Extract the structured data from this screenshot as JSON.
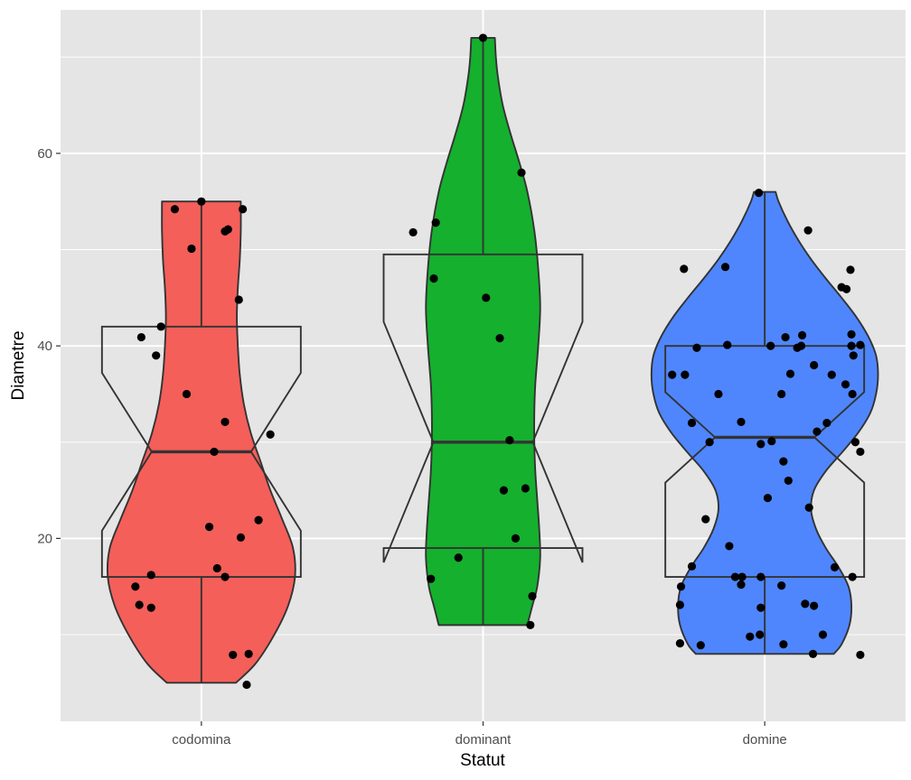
{
  "chart_data": {
    "type": "violin",
    "title": "",
    "xlabel": "Statut",
    "ylabel": "Diametre",
    "ylim": [
      1.0,
      74.9
    ],
    "yticks": [
      20,
      40,
      60
    ],
    "ytick_labels": [
      "20",
      "40",
      "60"
    ],
    "y_minor_ticks": [
      10,
      30,
      50,
      70
    ],
    "categories": [
      "codomina",
      "dominant",
      "domine"
    ],
    "grid": true,
    "legend": "none",
    "colors": {
      "panel": "#e5e5e5",
      "grid": "#ffffff",
      "outline": "#333333",
      "points": "#000000",
      "tick_text": "#4d4d4d",
      "codomina": "#f45f5a",
      "dominant": "#15b02e",
      "domine": "#4f86fd"
    },
    "series": [
      {
        "name": "codomina",
        "box": {
          "q1": 16,
          "median": 29,
          "q3": 42,
          "notch_low": 20.8,
          "notch_high": 37.2,
          "whisker_low": 5,
          "whisker_high": 55
        },
        "violin": {
          "y": [
            5,
            7,
            10,
            13,
            16,
            19,
            22,
            25,
            28,
            31,
            34,
            37,
            40,
            43,
            46,
            49,
            52,
            55
          ],
          "width": [
            0.35,
            0.55,
            0.74,
            0.88,
            0.95,
            0.93,
            0.82,
            0.7,
            0.6,
            0.5,
            0.43,
            0.39,
            0.37,
            0.36,
            0.37,
            0.39,
            0.4,
            0.4
          ]
        },
        "points": [
          [
            0.0,
            55.0
          ],
          [
            -0.27,
            54.2
          ],
          [
            0.42,
            54.2
          ],
          [
            0.27,
            52.1
          ],
          [
            0.24,
            51.9
          ],
          [
            -0.1,
            50.1
          ],
          [
            0.38,
            44.8
          ],
          [
            -0.61,
            40.9
          ],
          [
            -0.41,
            42.0
          ],
          [
            -0.46,
            39.0
          ],
          [
            -0.15,
            35.0
          ],
          [
            0.24,
            32.1
          ],
          [
            0.7,
            30.8
          ],
          [
            0.13,
            29.0
          ],
          [
            -0.51,
            16.2
          ],
          [
            0.58,
            21.9
          ],
          [
            0.08,
            21.2
          ],
          [
            0.4,
            20.1
          ],
          [
            0.16,
            16.9
          ],
          [
            0.24,
            16.0
          ],
          [
            -0.67,
            15.0
          ],
          [
            -0.63,
            13.1
          ],
          [
            -0.51,
            12.8
          ],
          [
            0.32,
            7.9
          ],
          [
            0.48,
            8.0
          ],
          [
            0.46,
            4.8
          ]
        ]
      },
      {
        "name": "dominant",
        "box": {
          "q1": 19,
          "median": 30,
          "q3": 49.5,
          "notch_low": 17.5,
          "notch_high": 42.5,
          "whisker_low": 11,
          "whisker_high": 72
        },
        "violin": {
          "y": [
            11,
            13,
            15,
            18,
            21,
            24,
            27,
            30,
            33,
            36,
            40,
            44,
            48,
            52,
            56,
            59,
            62,
            65,
            68,
            70,
            72
          ],
          "width": [
            0.45,
            0.5,
            0.55,
            0.58,
            0.57,
            0.55,
            0.53,
            0.52,
            0.52,
            0.53,
            0.56,
            0.58,
            0.56,
            0.52,
            0.45,
            0.37,
            0.28,
            0.2,
            0.15,
            0.13,
            0.12
          ]
        },
        "points": [
          [
            0.0,
            72.0
          ],
          [
            0.39,
            58.0
          ],
          [
            -0.48,
            52.8
          ],
          [
            -0.71,
            51.8
          ],
          [
            -0.5,
            47.0
          ],
          [
            0.03,
            45.0
          ],
          [
            0.17,
            40.8
          ],
          [
            0.27,
            30.2
          ],
          [
            0.43,
            25.2
          ],
          [
            0.21,
            25.0
          ],
          [
            0.33,
            20.0
          ],
          [
            -0.25,
            18.0
          ],
          [
            -0.53,
            15.8
          ],
          [
            0.5,
            14.0
          ],
          [
            0.48,
            11.0
          ]
        ]
      },
      {
        "name": "domine",
        "box": {
          "q1": 16,
          "median": 30.5,
          "q3": 40,
          "notch_low": 25.8,
          "notch_high": 35.2,
          "whisker_low": 8,
          "whisker_high": 56
        },
        "violin": {
          "y": [
            8,
            9,
            11,
            13,
            15,
            17,
            19,
            21,
            23,
            25,
            27,
            29,
            31,
            33,
            35,
            37,
            39,
            41,
            43,
            45,
            47,
            49,
            51,
            53,
            55,
            56
          ],
          "width": [
            0.7,
            0.78,
            0.86,
            0.88,
            0.85,
            0.75,
            0.62,
            0.52,
            0.47,
            0.5,
            0.62,
            0.79,
            0.95,
            1.07,
            1.13,
            1.15,
            1.13,
            1.05,
            0.93,
            0.78,
            0.62,
            0.47,
            0.34,
            0.23,
            0.14,
            0.11
          ]
        },
        "points": [
          [
            -0.06,
            55.9
          ],
          [
            0.44,
            52.0
          ],
          [
            -0.82,
            48.0
          ],
          [
            -0.4,
            48.2
          ],
          [
            0.78,
            46.1
          ],
          [
            0.83,
            45.9
          ],
          [
            0.87,
            47.9
          ],
          [
            0.88,
            41.2
          ],
          [
            -0.69,
            39.8
          ],
          [
            -0.38,
            40.1
          ],
          [
            0.06,
            40.0
          ],
          [
            0.33,
            39.8
          ],
          [
            0.37,
            40.0
          ],
          [
            0.21,
            40.9
          ],
          [
            0.38,
            41.1
          ],
          [
            0.88,
            40.0
          ],
          [
            0.97,
            40.1
          ],
          [
            0.9,
            39.0
          ],
          [
            -0.94,
            37.0
          ],
          [
            -0.81,
            37.0
          ],
          [
            0.26,
            37.1
          ],
          [
            0.5,
            38.0
          ],
          [
            0.68,
            37.0
          ],
          [
            0.82,
            36.0
          ],
          [
            0.89,
            35.0
          ],
          [
            -0.47,
            35.0
          ],
          [
            0.17,
            35.0
          ],
          [
            -0.74,
            32.0
          ],
          [
            -0.24,
            32.1
          ],
          [
            0.63,
            32.0
          ],
          [
            0.53,
            31.1
          ],
          [
            -0.56,
            30.0
          ],
          [
            -0.04,
            29.8
          ],
          [
            0.07,
            30.1
          ],
          [
            0.92,
            30.0
          ],
          [
            0.97,
            29.0
          ],
          [
            0.19,
            28.0
          ],
          [
            0.24,
            26.0
          ],
          [
            0.03,
            24.2
          ],
          [
            0.45,
            23.2
          ],
          [
            -0.6,
            22.0
          ],
          [
            -0.36,
            19.2
          ],
          [
            -0.74,
            17.1
          ],
          [
            -0.3,
            16.0
          ],
          [
            -0.23,
            16.0
          ],
          [
            -0.04,
            16.0
          ],
          [
            0.71,
            17.0
          ],
          [
            0.89,
            16.0
          ],
          [
            -0.85,
            15.0
          ],
          [
            -0.24,
            15.2
          ],
          [
            0.17,
            15.1
          ],
          [
            -0.86,
            13.1
          ],
          [
            -0.04,
            12.8
          ],
          [
            0.41,
            13.2
          ],
          [
            0.5,
            13.0
          ],
          [
            -0.86,
            9.1
          ],
          [
            -0.65,
            8.9
          ],
          [
            -0.15,
            9.8
          ],
          [
            -0.05,
            10.0
          ],
          [
            0.19,
            9.0
          ],
          [
            0.59,
            10.0
          ],
          [
            0.49,
            8.0
          ],
          [
            0.97,
            7.9
          ]
        ]
      }
    ]
  }
}
